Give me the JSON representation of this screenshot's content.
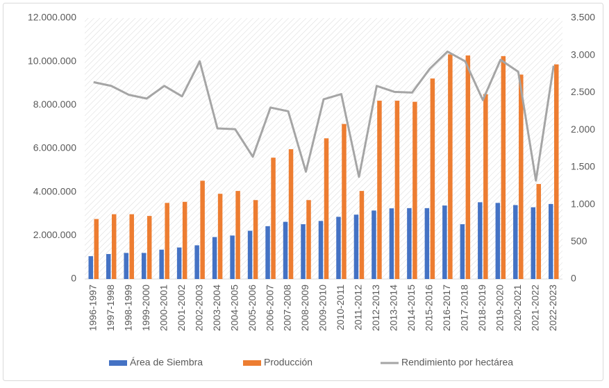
{
  "chart_data": {
    "type": "bar-line",
    "categories": [
      "1996-1997",
      "1997-1998",
      "1998-1999",
      "1999-2000",
      "2000-2001",
      "2001-2002",
      "2002-2003",
      "2003-2004",
      "2004-2005",
      "2005-2006",
      "2006-2007",
      "2007-2008",
      "2008-2009",
      "2009-2010",
      "2010-2011",
      "2011-2012",
      "2012-2013",
      "2013-2014",
      "2014-2015",
      "2015-2016",
      "2016-2017",
      "2017-2018",
      "2018-2019",
      "2019-2020",
      "2020-2021",
      "2021-2022",
      "2022-2023"
    ],
    "series": [
      {
        "name": "Área de Siembra",
        "color": "#4472c4",
        "kind": "bar",
        "values": [
          1050000,
          1150000,
          1200000,
          1200000,
          1350000,
          1450000,
          1550000,
          1930000,
          2000000,
          2220000,
          2430000,
          2630000,
          2520000,
          2670000,
          2860000,
          2960000,
          3150000,
          3250000,
          3260000,
          3260000,
          3380000,
          2520000,
          3530000,
          3500000,
          3400000,
          3300000,
          3450000
        ]
      },
      {
        "name": "Producción",
        "color": "#ed7d31",
        "kind": "bar",
        "values": [
          2760000,
          2980000,
          2980000,
          2900000,
          3500000,
          3550000,
          4520000,
          3920000,
          4050000,
          3630000,
          5580000,
          5970000,
          3630000,
          6470000,
          7130000,
          4050000,
          8200000,
          8200000,
          8150000,
          9220000,
          10330000,
          10280000,
          8500000,
          10250000,
          9400000,
          4370000,
          9870000
        ]
      },
      {
        "name": "Rendimiento por hectárea",
        "color": "#a5a5a5",
        "kind": "line",
        "axis": "y2",
        "values": [
          2640,
          2590,
          2470,
          2420,
          2590,
          2450,
          2920,
          2020,
          2010,
          1640,
          2300,
          2250,
          1440,
          2410,
          2480,
          1370,
          2590,
          2510,
          2500,
          2820,
          3050,
          2920,
          2400,
          2940,
          2780,
          1320,
          2860
        ]
      }
    ],
    "ylim": [
      0,
      12000000
    ],
    "yticks": [
      0,
      {
        "value": 2000000,
        "label": "2.000.000"
      },
      {
        "value": 4000000,
        "label": "4.000.000"
      },
      {
        "value": 6000000,
        "label": "6.000.000"
      },
      {
        "value": 8000000,
        "label": "8.000.000"
      },
      {
        "value": 10000000,
        "label": "10.000.000"
      },
      {
        "value": 12000000,
        "label": "12.000.000"
      }
    ],
    "y2lim": [
      0,
      3500
    ],
    "y2ticks": [
      0,
      500,
      {
        "value": 1000,
        "label": "1.000"
      },
      {
        "value": 1500,
        "label": "1.500"
      },
      {
        "value": 2000,
        "label": "2.000"
      },
      {
        "value": 2500,
        "label": "2.500"
      },
      {
        "value": 3000,
        "label": "3.000"
      },
      {
        "value": 3500,
        "label": "3.500"
      }
    ],
    "legend": "bottom"
  }
}
